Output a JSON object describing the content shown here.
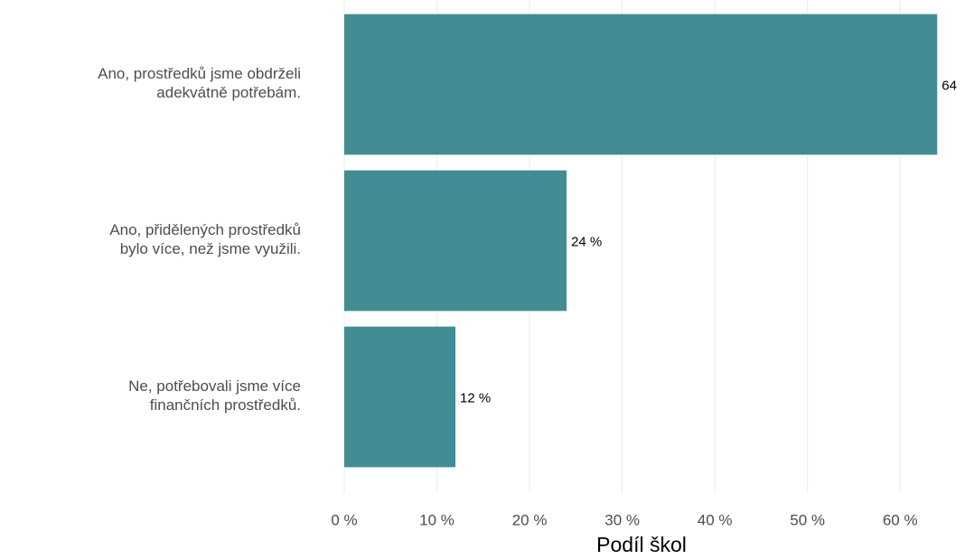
{
  "chart_data": {
    "type": "barh",
    "categories": [
      [
        "Ano, prostředků jsme obdrželi",
        "adekvátně potřebám."
      ],
      [
        "Ano, přidělených prostředků",
        "bylo více, než jsme využili."
      ],
      [
        "Ne, potřebovali jsme více",
        "finančních prostředků."
      ]
    ],
    "values": [
      64,
      24,
      12
    ],
    "value_labels": [
      "64",
      "24 %",
      "12 %"
    ],
    "color": "#428c94",
    "xlabel": "Podíl škol",
    "xlim": [
      0,
      67
    ],
    "xticks": [
      {
        "value": 0,
        "label": "0 %"
      },
      {
        "value": 10,
        "label": "10 %"
      },
      {
        "value": 20,
        "label": "20 %"
      },
      {
        "value": 30,
        "label": "30 %"
      },
      {
        "value": 40,
        "label": "40 %"
      },
      {
        "value": 50,
        "label": "50 %"
      },
      {
        "value": 60,
        "label": "60 %"
      }
    ],
    "grid": true
  }
}
